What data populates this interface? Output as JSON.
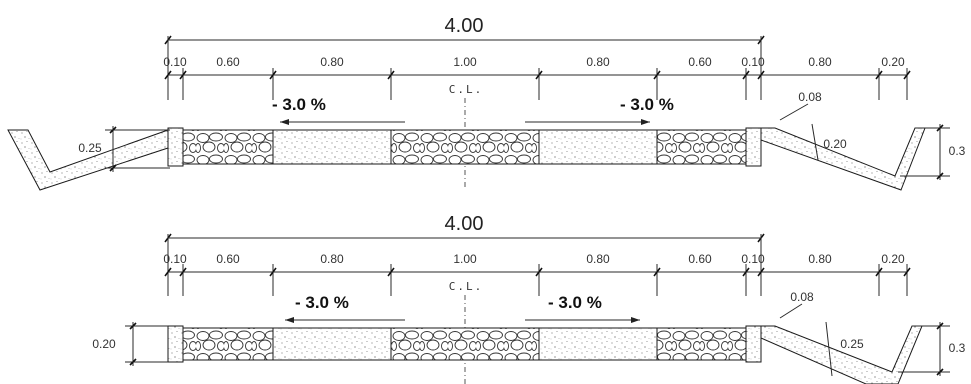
{
  "sections": [
    {
      "total_width": "4.00",
      "top_dims": [
        "0.10",
        "0.60",
        "0.80",
        "1.00",
        "0.80",
        "0.60",
        "0.10"
      ],
      "right_dims": [
        "0.80",
        "0.20"
      ],
      "centerline_label": "C.L.",
      "slope_left": "- 3.0 %",
      "slope_right": "- 3.0 %",
      "left_side_dim": "0.25",
      "right_small_dim": "0.08",
      "right_inner_dim": "0.20",
      "right_outer_dim": "0.3",
      "left_ditch": true
    },
    {
      "total_width": "4.00",
      "top_dims": [
        "0.10",
        "0.60",
        "0.80",
        "1.00",
        "0.80",
        "0.60",
        "0.10"
      ],
      "right_dims": [
        "0.80",
        "0.20"
      ],
      "centerline_label": "C.L.",
      "slope_left": "- 3.0 %",
      "slope_right": "- 3.0 %",
      "left_side_dim": "0.20",
      "right_small_dim": "0.08",
      "right_inner_dim": "0.25",
      "right_outer_dim": "0.3",
      "left_ditch": false
    }
  ]
}
